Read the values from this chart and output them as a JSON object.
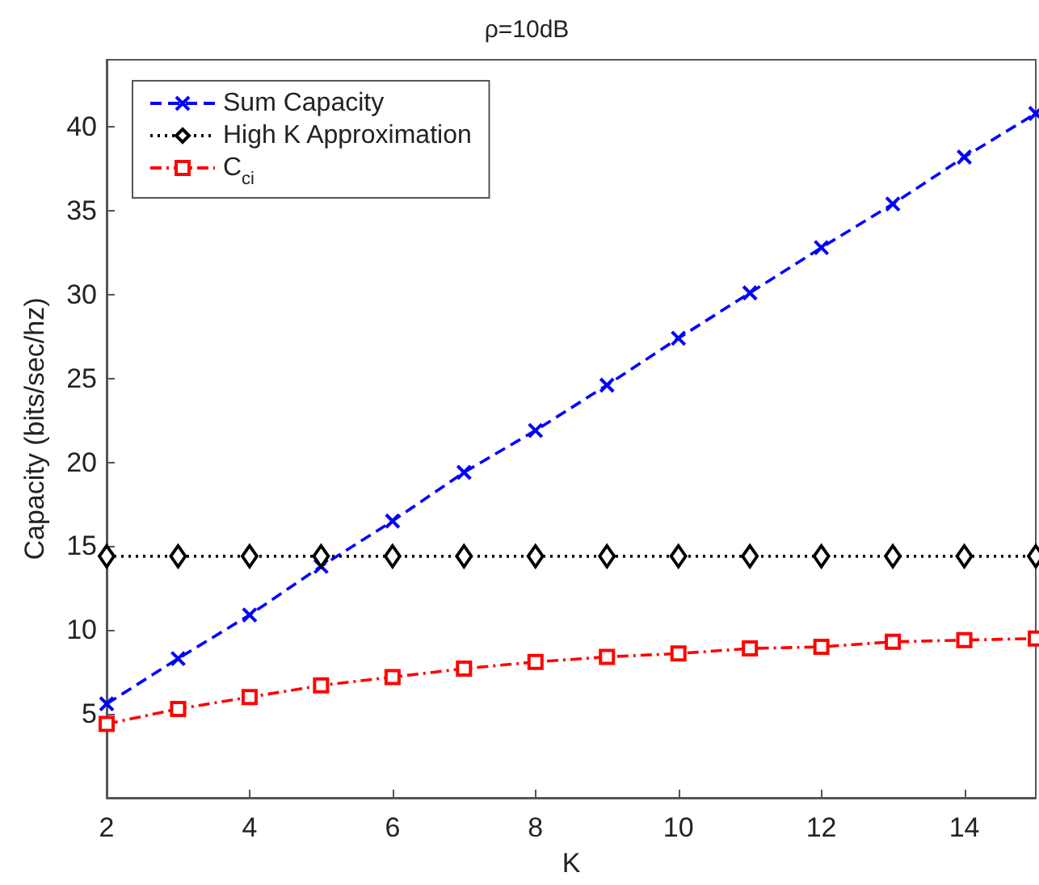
{
  "chart_data": {
    "type": "line",
    "title": "ρ=10dB",
    "xlabel": "K",
    "ylabel": "Capacity (bits/sec/hz)",
    "x": [
      2,
      3,
      4,
      5,
      6,
      7,
      8,
      9,
      10,
      11,
      12,
      13,
      14,
      15
    ],
    "series": [
      {
        "name": "Sum Capacity",
        "color": "#0000ff",
        "marker": "cross",
        "line_style": "dashed",
        "values": [
          5.6,
          8.3,
          10.9,
          13.8,
          16.5,
          19.4,
          21.9,
          24.6,
          27.4,
          30.1,
          32.8,
          35.4,
          38.2,
          40.8
        ]
      },
      {
        "name": "High K Approximation",
        "color": "#000000",
        "marker": "diamond",
        "line_style": "dotted",
        "values": [
          14.4,
          14.4,
          14.4,
          14.4,
          14.4,
          14.4,
          14.4,
          14.4,
          14.4,
          14.4,
          14.4,
          14.4,
          14.4,
          14.4
        ]
      },
      {
        "name": "C$_{ci}$",
        "color": "#ff0000",
        "marker": "square",
        "line_style": "dashdot",
        "values": [
          4.4,
          5.3,
          6.0,
          6.7,
          7.2,
          7.7,
          8.1,
          8.4,
          8.6,
          8.9,
          9.0,
          9.3,
          9.4,
          9.5
        ]
      }
    ],
    "xlim": [
      2,
      15
    ],
    "xticks": [
      2,
      4,
      6,
      8,
      10,
      12,
      14
    ],
    "ylim": [
      0,
      44
    ],
    "yticks": [
      5,
      10,
      15,
      20,
      25,
      30,
      35,
      40
    ],
    "grid": false,
    "legend": "top left"
  }
}
